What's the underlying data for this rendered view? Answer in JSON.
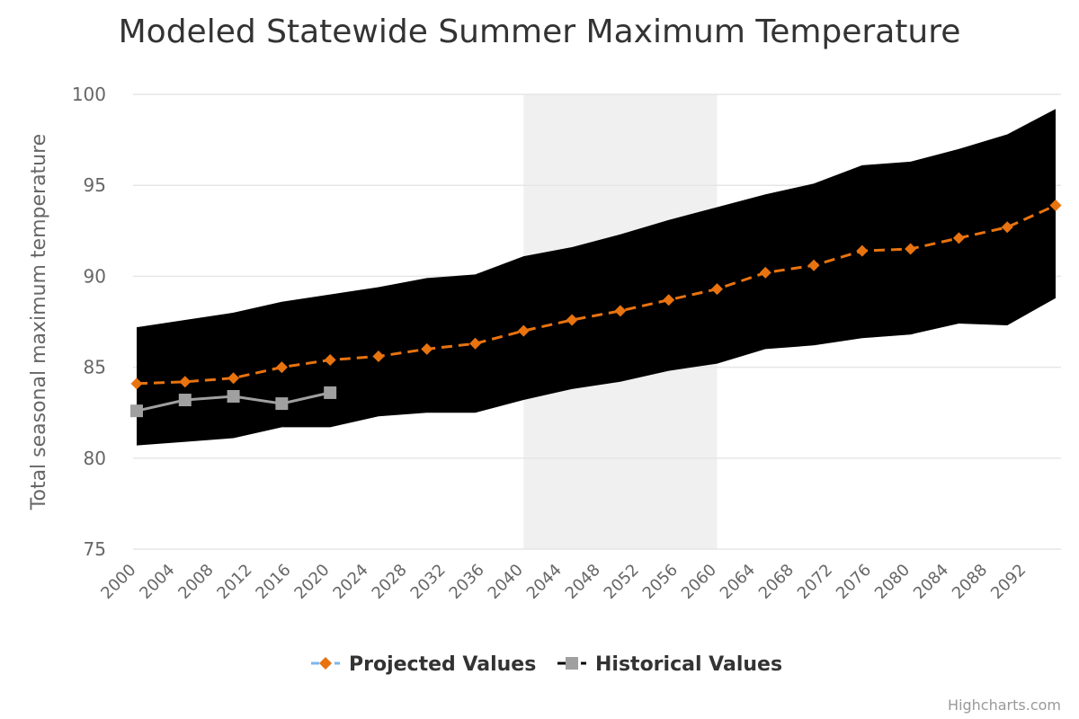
{
  "chart_data": {
    "type": "line",
    "title": "Modeled Statewide Summer Maximum Temperature",
    "ylabel": "Total seasonal maximum temperature",
    "xlabel": "",
    "ylim": [
      75,
      100
    ],
    "yticks": [
      "75",
      "80",
      "85",
      "90",
      "95",
      "100"
    ],
    "xlim": [
      2000,
      2095
    ],
    "xticks": [
      "2000",
      "2004",
      "2008",
      "2012",
      "2016",
      "2020",
      "2024",
      "2028",
      "2032",
      "2036",
      "2040",
      "2044",
      "2048",
      "2052",
      "2056",
      "2060",
      "2064",
      "2068",
      "2072",
      "2076",
      "2080",
      "2084",
      "2088",
      "2092"
    ],
    "grid": true,
    "legend_position": "bottom",
    "plot_band": {
      "from": 2040,
      "to": 2060,
      "color": "#f0f0f0"
    },
    "range_band": {
      "color": "#000000",
      "x": [
        2000,
        2005,
        2010,
        2015,
        2020,
        2025,
        2030,
        2035,
        2040,
        2045,
        2050,
        2055,
        2060,
        2065,
        2070,
        2075,
        2080,
        2085,
        2090,
        2095
      ],
      "low": [
        80.7,
        80.9,
        81.1,
        81.7,
        81.7,
        82.3,
        82.5,
        82.5,
        83.2,
        83.8,
        84.2,
        84.8,
        85.2,
        86.0,
        86.2,
        86.6,
        86.8,
        87.4,
        87.3,
        88.8
      ],
      "high": [
        87.2,
        87.6,
        88.0,
        88.6,
        89.0,
        89.4,
        89.9,
        90.1,
        91.1,
        91.6,
        92.3,
        93.1,
        93.8,
        94.5,
        95.1,
        96.1,
        96.3,
        97.0,
        97.8,
        99.2
      ]
    },
    "series": [
      {
        "name": "Projected Values",
        "color": "#E8730F",
        "marker": "diamond",
        "dash": "dashed",
        "x": [
          2000,
          2005,
          2010,
          2015,
          2020,
          2025,
          2030,
          2035,
          2040,
          2045,
          2050,
          2055,
          2060,
          2065,
          2070,
          2075,
          2080,
          2085,
          2090,
          2095
        ],
        "values": [
          84.1,
          84.2,
          84.4,
          85.0,
          85.4,
          85.6,
          86.0,
          86.3,
          87.0,
          87.6,
          88.1,
          88.7,
          89.3,
          90.2,
          90.6,
          91.4,
          91.5,
          92.1,
          92.7,
          93.9
        ]
      },
      {
        "name": "Historical Values",
        "color": "#A0A0A0",
        "marker": "square",
        "dash": "solid",
        "x": [
          2000,
          2005,
          2010,
          2015,
          2020
        ],
        "values": [
          82.6,
          83.2,
          83.4,
          83.0,
          83.6
        ]
      }
    ],
    "credits": "Highcharts.com"
  }
}
